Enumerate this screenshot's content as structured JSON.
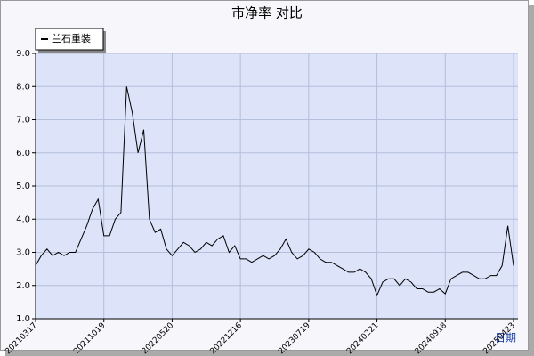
{
  "chart_data": {
    "type": "line",
    "title": "市净率 对比",
    "x_label": "日期",
    "categories": [
      "20210317",
      null,
      null,
      null,
      null,
      null,
      null,
      null,
      null,
      null,
      null,
      null,
      "20211019",
      null,
      null,
      null,
      null,
      null,
      null,
      null,
      null,
      null,
      null,
      null,
      "20220520",
      null,
      null,
      null,
      null,
      null,
      null,
      null,
      null,
      null,
      null,
      null,
      "20221216",
      null,
      null,
      null,
      null,
      null,
      null,
      null,
      null,
      null,
      null,
      null,
      "20230719",
      null,
      null,
      null,
      null,
      null,
      null,
      null,
      null,
      null,
      null,
      null,
      "20240221",
      null,
      null,
      null,
      null,
      null,
      null,
      null,
      null,
      null,
      null,
      null,
      "20240918",
      null,
      null,
      null,
      null,
      null,
      null,
      null,
      null,
      null,
      null,
      null,
      "20250423"
    ],
    "series": [
      {
        "name": "兰石重装",
        "color": "#000000",
        "values": [
          2.6,
          2.9,
          3.1,
          2.9,
          3.0,
          2.9,
          3.0,
          3.0,
          3.4,
          3.8,
          4.3,
          4.6,
          3.5,
          3.5,
          4.0,
          4.2,
          8.0,
          7.2,
          6.0,
          6.7,
          4.0,
          3.6,
          3.7,
          3.1,
          2.9,
          3.1,
          3.3,
          3.2,
          3.0,
          3.1,
          3.3,
          3.2,
          3.4,
          3.5,
          3.0,
          3.2,
          2.8,
          2.8,
          2.7,
          2.8,
          2.9,
          2.8,
          2.9,
          3.1,
          3.4,
          3.0,
          2.8,
          2.9,
          3.1,
          3.0,
          2.8,
          2.7,
          2.7,
          2.6,
          2.5,
          2.4,
          2.4,
          2.5,
          2.4,
          2.2,
          1.7,
          2.1,
          2.2,
          2.2,
          2.0,
          2.2,
          2.1,
          1.9,
          1.9,
          1.8,
          1.8,
          1.9,
          1.75,
          2.2,
          2.3,
          2.4,
          2.4,
          2.3,
          2.2,
          2.2,
          2.3,
          2.3,
          2.6,
          3.8,
          2.6
        ]
      }
    ],
    "ylim": [
      1,
      9
    ],
    "yticks": [
      {
        "value": 1,
        "label": "1.0"
      },
      {
        "value": 2,
        "label": "2.0"
      },
      {
        "value": 3,
        "label": "3.0"
      },
      {
        "value": 4,
        "label": "4.0"
      },
      {
        "value": 5,
        "label": "5.0"
      },
      {
        "value": 6,
        "label": "6.0"
      },
      {
        "value": 7,
        "label": "7.0"
      },
      {
        "value": 8,
        "label": "8.0"
      },
      {
        "value": 9,
        "label": "9.0"
      }
    ],
    "grid": true,
    "legend": "upper left"
  }
}
